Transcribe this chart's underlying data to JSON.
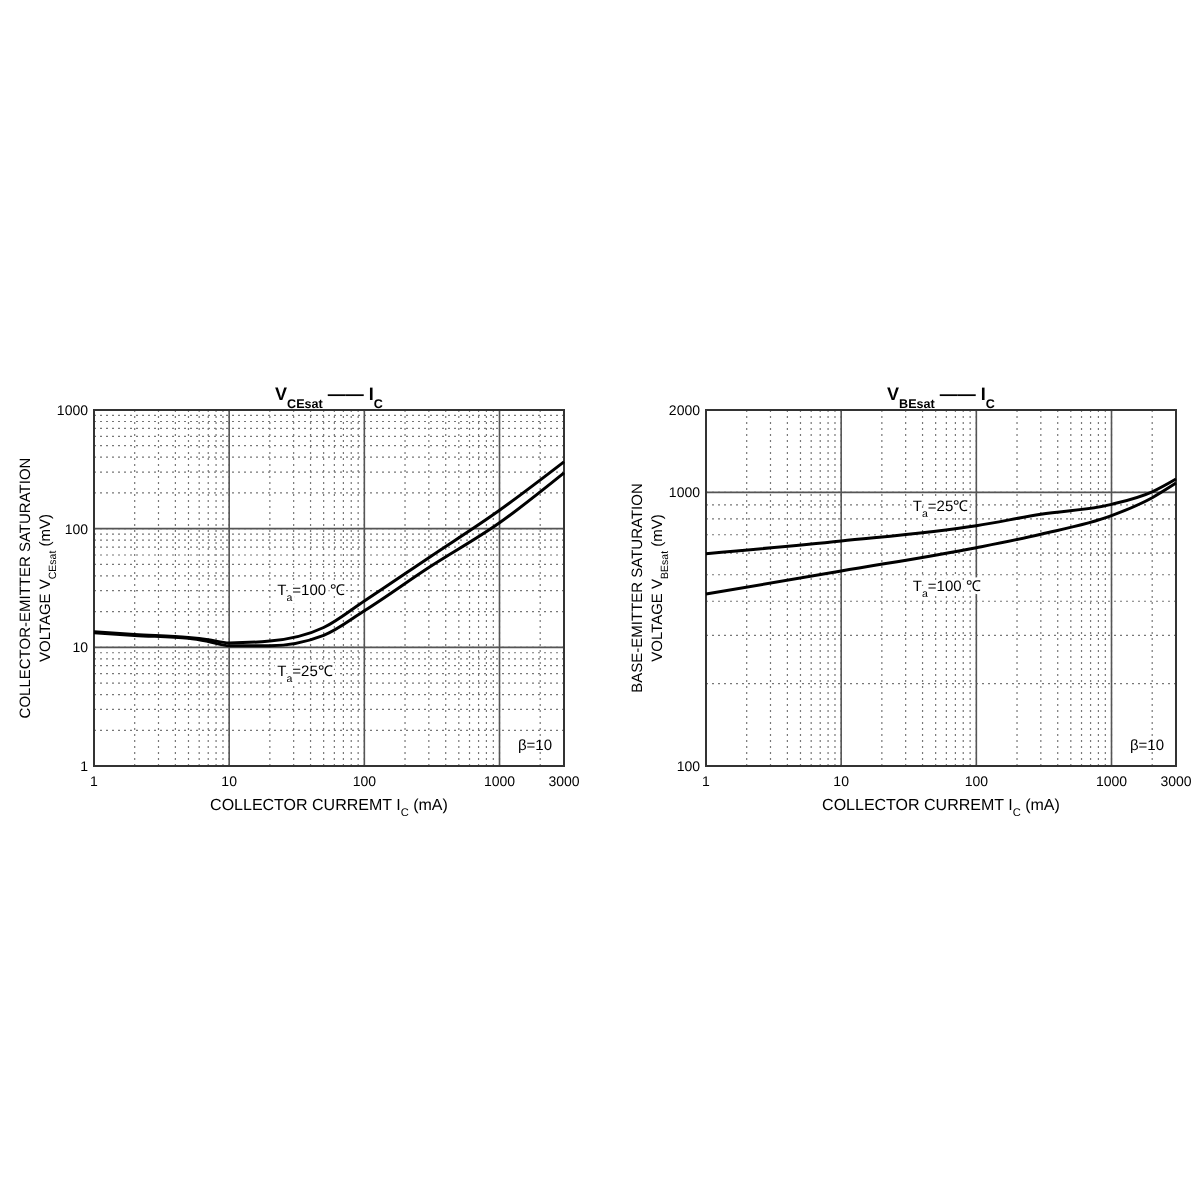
{
  "chart_data": [
    {
      "type": "line",
      "title": "V$_{CEsat}$ —— I$_{C}$",
      "xlabel": "COLLECTOR CURREMT I$_{C}$ (mA)",
      "ylabel": "COLLECTOR-EMITTER SATURATION\nVOLTAGE   V$_{CEsat}$  (mV)",
      "log": "xy",
      "grid": true,
      "xlim": [
        1,
        3000
      ],
      "ylim": [
        1,
        1000
      ],
      "xticks": [
        1,
        10,
        100,
        1000,
        3000
      ],
      "yticks": [
        1,
        10,
        100,
        1000
      ],
      "line_style": "solid",
      "series": [
        {
          "name": "T$_{a}$=100 ℃",
          "color": "#000000",
          "x": [
            1,
            2,
            5,
            7,
            10,
            20,
            50,
            100,
            300,
            1000,
            3000
          ],
          "values": [
            13.5,
            12.8,
            12.1,
            11.6,
            10.9,
            11.3,
            14.7,
            24.6,
            57,
            143,
            366
          ]
        },
        {
          "name": "T$_{a}$=25℃",
          "color": "#000000",
          "x": [
            1,
            2,
            5,
            7,
            10,
            20,
            50,
            100,
            300,
            1000,
            3000
          ],
          "values": [
            13.3,
            12.6,
            11.9,
            11.2,
            10.3,
            10.3,
            12.6,
            20.3,
            47,
            112,
            295
          ]
        }
      ],
      "annotations": [
        "β=10"
      ]
    },
    {
      "type": "line",
      "title": "V$_{BEsat}$ —— I$_{C}$",
      "xlabel": "COLLECTOR CURREMT I$_{C}$ (mA)",
      "ylabel": "BASE-EMITTER SATURATION\nVOLTAGE   V$_{BEsat}$  (mV)",
      "log": "xy",
      "grid": true,
      "xlim": [
        1,
        3000
      ],
      "ylim": [
        100,
        2000
      ],
      "xticks": [
        1,
        10,
        100,
        1000,
        3000
      ],
      "yticks": [
        100,
        1000,
        2000
      ],
      "line_style": "solid",
      "series": [
        {
          "name": "T$_{a}$=25℃",
          "color": "#000000",
          "x": [
            1,
            10,
            100,
            300,
            1000,
            2000,
            3000
          ],
          "values": [
            597,
            664,
            755,
            832,
            904,
            1005,
            1119
          ]
        },
        {
          "name": "T$_{a}$=100 ℃",
          "color": "#000000",
          "x": [
            1,
            10,
            100,
            300,
            1000,
            2000,
            3000
          ],
          "values": [
            425,
            516,
            628,
            703,
            822,
            956,
            1081
          ]
        }
      ],
      "annotations": [
        "β=10"
      ]
    }
  ]
}
